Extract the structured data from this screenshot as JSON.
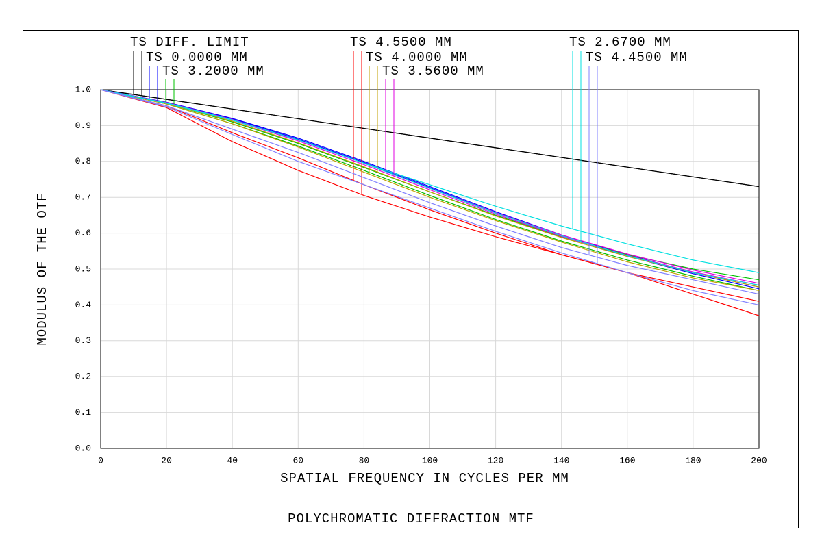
{
  "chart_data": {
    "type": "line",
    "title": "POLYCHROMATIC DIFFRACTION MTF",
    "x_label": "SPATIAL FREQUENCY IN CYCLES PER MM",
    "y_label": "MODULUS OF THE OTF",
    "x": [
      0,
      20,
      40,
      60,
      80,
      100,
      120,
      140,
      160,
      180,
      200
    ],
    "xlim": [
      0,
      200
    ],
    "xticks": [
      0,
      20,
      40,
      60,
      80,
      100,
      120,
      140,
      160,
      180,
      200
    ],
    "ylim": [
      0,
      1
    ],
    "yticks": [
      {
        "value": 0,
        "label": "0.0"
      },
      {
        "value": 0.1,
        "label": "0.1"
      },
      {
        "value": 0.2,
        "label": "0.2"
      },
      {
        "value": 0.3,
        "label": "0.3"
      },
      {
        "value": 0.4,
        "label": "0.4"
      },
      {
        "value": 0.5,
        "label": "0.5"
      },
      {
        "value": 0.6,
        "label": "0.6"
      },
      {
        "value": 0.7,
        "label": "0.7"
      },
      {
        "value": 0.8,
        "label": "0.8"
      },
      {
        "value": 0.9,
        "label": "0.9"
      },
      {
        "value": 1,
        "label": "1.0"
      }
    ],
    "grid": true,
    "series": [
      {
        "name": "TS DIFF. LIMIT",
        "color": "#000000",
        "tangential": [
          1,
          0.973,
          0.946,
          0.919,
          0.892,
          0.865,
          0.838,
          0.811,
          0.784,
          0.757,
          0.73
        ],
        "sagittal": [
          1,
          0.973,
          0.946,
          0.919,
          0.892,
          0.865,
          0.838,
          0.811,
          0.784,
          0.757,
          0.73
        ]
      },
      {
        "name": "TS 0.0000 MM",
        "color": "#0000ff",
        "tangential": [
          1,
          0.965,
          0.92,
          0.865,
          0.8,
          0.73,
          0.66,
          0.595,
          0.54,
          0.49,
          0.45
        ],
        "sagittal": [
          1,
          0.964,
          0.918,
          0.862,
          0.797,
          0.727,
          0.657,
          0.592,
          0.536,
          0.487,
          0.445
        ]
      },
      {
        "name": "TS 3.2000 MM",
        "color": "#00c000",
        "tangential": [
          1,
          0.962,
          0.91,
          0.85,
          0.783,
          0.715,
          0.65,
          0.59,
          0.54,
          0.5,
          0.47
        ],
        "sagittal": [
          1,
          0.96,
          0.905,
          0.843,
          0.775,
          0.705,
          0.638,
          0.578,
          0.525,
          0.48,
          0.44
        ]
      },
      {
        "name": "TS 4.5500 MM",
        "color": "#ff0000",
        "tangential": [
          1,
          0.955,
          0.88,
          0.81,
          0.735,
          0.665,
          0.6,
          0.54,
          0.49,
          0.45,
          0.41
        ],
        "sagittal": [
          1,
          0.95,
          0.855,
          0.775,
          0.705,
          0.645,
          0.59,
          0.54,
          0.49,
          0.43,
          0.37
        ]
      },
      {
        "name": "TS 4.0000 MM",
        "color": "#c0a000",
        "tangential": [
          1,
          0.96,
          0.905,
          0.84,
          0.77,
          0.7,
          0.635,
          0.575,
          0.52,
          0.475,
          0.44
        ],
        "sagittal": [
          1,
          0.962,
          0.912,
          0.852,
          0.785,
          0.715,
          0.648,
          0.588,
          0.535,
          0.49,
          0.45
        ]
      },
      {
        "name": "TS 3.5600 MM",
        "color": "#e000e0",
        "tangential": [
          1,
          0.964,
          0.917,
          0.86,
          0.795,
          0.725,
          0.657,
          0.595,
          0.542,
          0.497,
          0.46
        ],
        "sagittal": [
          1,
          0.963,
          0.915,
          0.857,
          0.791,
          0.721,
          0.653,
          0.591,
          0.538,
          0.492,
          0.455
        ]
      },
      {
        "name": "TS 2.6700 MM",
        "color": "#00e0e0",
        "tangential": [
          1,
          0.962,
          0.915,
          0.86,
          0.795,
          0.735,
          0.675,
          0.62,
          0.57,
          0.525,
          0.49
        ],
        "sagittal": [
          1,
          0.963,
          0.916,
          0.86,
          0.795,
          0.725,
          0.656,
          0.593,
          0.537,
          0.49,
          0.455
        ]
      },
      {
        "name": "TS 4.4500 MM",
        "color": "#8080ff",
        "tangential": [
          1,
          0.955,
          0.89,
          0.825,
          0.755,
          0.685,
          0.62,
          0.56,
          0.51,
          0.47,
          0.43
        ],
        "sagittal": [
          1,
          0.952,
          0.875,
          0.8,
          0.735,
          0.67,
          0.605,
          0.545,
          0.49,
          0.44,
          0.4
        ]
      }
    ]
  }
}
